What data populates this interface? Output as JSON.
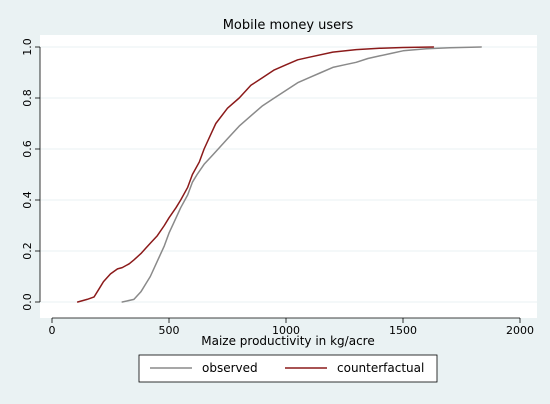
{
  "chart_data": {
    "type": "line",
    "title": "Mobile money users",
    "xlabel": "Maize productivity in kg/acre",
    "ylabel": "",
    "xlim": [
      0,
      2000
    ],
    "ylim": [
      0,
      1
    ],
    "x_ticks": [
      0,
      500,
      1000,
      1500,
      2000
    ],
    "y_ticks": [
      0.0,
      0.2,
      0.4,
      0.6,
      0.8,
      1.0
    ],
    "x_tick_labels": [
      "0",
      "500",
      "1000",
      "1500",
      "2000"
    ],
    "y_tick_labels": [
      "0.0",
      "0.2",
      "0.4",
      "0.6",
      "0.8",
      "1.0"
    ],
    "grid": "horizontal",
    "legend_position": "bottom",
    "series": [
      {
        "name": "observed",
        "color": "#8a8a8a",
        "x": [
          300,
          350,
          380,
          400,
          420,
          450,
          480,
          500,
          520,
          550,
          580,
          600,
          620,
          650,
          680,
          700,
          750,
          800,
          850,
          900,
          950,
          1000,
          1050,
          1100,
          1150,
          1200,
          1250,
          1300,
          1350,
          1400,
          1450,
          1500,
          1600,
          1700,
          1834
        ],
        "y": [
          0.0,
          0.01,
          0.04,
          0.07,
          0.1,
          0.16,
          0.22,
          0.27,
          0.31,
          0.37,
          0.42,
          0.47,
          0.5,
          0.54,
          0.57,
          0.59,
          0.64,
          0.69,
          0.73,
          0.77,
          0.8,
          0.83,
          0.86,
          0.88,
          0.9,
          0.92,
          0.93,
          0.94,
          0.955,
          0.965,
          0.975,
          0.985,
          0.993,
          0.997,
          1.0
        ]
      },
      {
        "name": "counterfactual",
        "color": "#8b1a1a",
        "x": [
          110,
          150,
          180,
          200,
          220,
          250,
          280,
          300,
          330,
          350,
          380,
          400,
          420,
          450,
          480,
          500,
          530,
          550,
          580,
          600,
          630,
          650,
          680,
          700,
          750,
          800,
          850,
          900,
          950,
          1000,
          1050,
          1100,
          1200,
          1300,
          1400,
          1500,
          1630
        ],
        "y": [
          0.0,
          0.01,
          0.02,
          0.05,
          0.08,
          0.11,
          0.13,
          0.135,
          0.15,
          0.165,
          0.19,
          0.21,
          0.23,
          0.26,
          0.3,
          0.33,
          0.37,
          0.4,
          0.45,
          0.5,
          0.55,
          0.6,
          0.66,
          0.7,
          0.76,
          0.8,
          0.85,
          0.88,
          0.91,
          0.93,
          0.95,
          0.96,
          0.98,
          0.99,
          0.995,
          0.998,
          1.0
        ]
      }
    ]
  }
}
